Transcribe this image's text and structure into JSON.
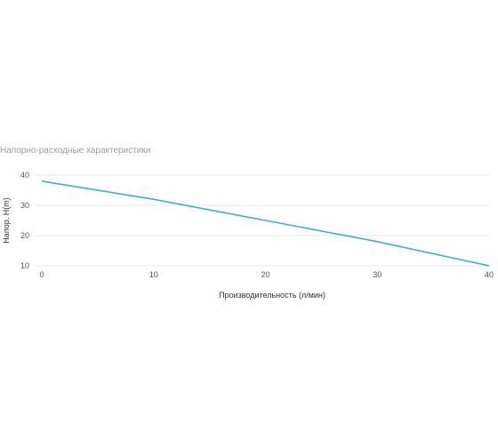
{
  "chart_data": {
    "type": "line",
    "title": "Напорно-расходные характеристики",
    "xlabel": "Производительность (л/мин)",
    "ylabel": "Напор, H(m)",
    "xlim": [
      0,
      40
    ],
    "ylim": [
      10,
      40
    ],
    "x_ticks": [
      "0",
      "10",
      "20",
      "30",
      "40"
    ],
    "y_ticks": [
      "10",
      "20",
      "30",
      "40"
    ],
    "grid": true,
    "legend": "none",
    "line_color": "#3bb3c3",
    "series": [
      {
        "x": [
          0,
          10,
          20,
          30,
          40
        ],
        "y": [
          38,
          32,
          25,
          18,
          10
        ]
      }
    ]
  }
}
